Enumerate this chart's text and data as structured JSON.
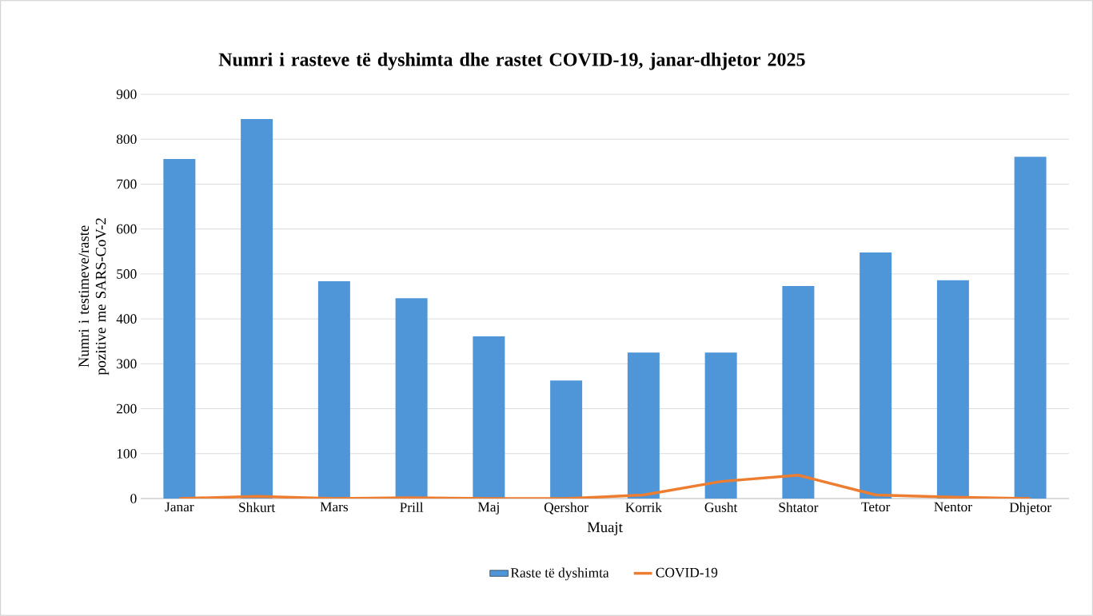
{
  "chart_data": {
    "type": "bar",
    "title": "Numri i rasteve të dyshimta dhe rastet COVID-19, janar-dhjetor 2025",
    "xlabel": "Muajt",
    "ylabel": "Numri i testimeve/raste pozitive me SARS-CoV-2",
    "categories": [
      "Janar",
      "Shkurt",
      "Mars",
      "Prill",
      "Maj",
      "Qershor",
      "Korrik",
      "Gusht",
      "Shtator",
      "Tetor",
      "Nentor",
      "Dhjetor"
    ],
    "series": [
      {
        "name": "Raste të dyshimta",
        "color": "#4f96d9",
        "values": [
          756,
          845,
          484,
          446,
          361,
          263,
          325,
          325,
          473,
          548,
          486,
          761
        ]
      },
      {
        "name": "COVID-19",
        "type": "line",
        "color": "#ed7d31",
        "values": [
          0,
          5,
          0,
          2,
          0,
          0,
          8,
          38,
          52,
          8,
          3,
          0
        ]
      }
    ],
    "ylim": [
      0,
      900
    ],
    "yticks": [
      0,
      100,
      200,
      300,
      400,
      500,
      600,
      700,
      800,
      900
    ],
    "grid": "y",
    "legend": "bottom"
  }
}
